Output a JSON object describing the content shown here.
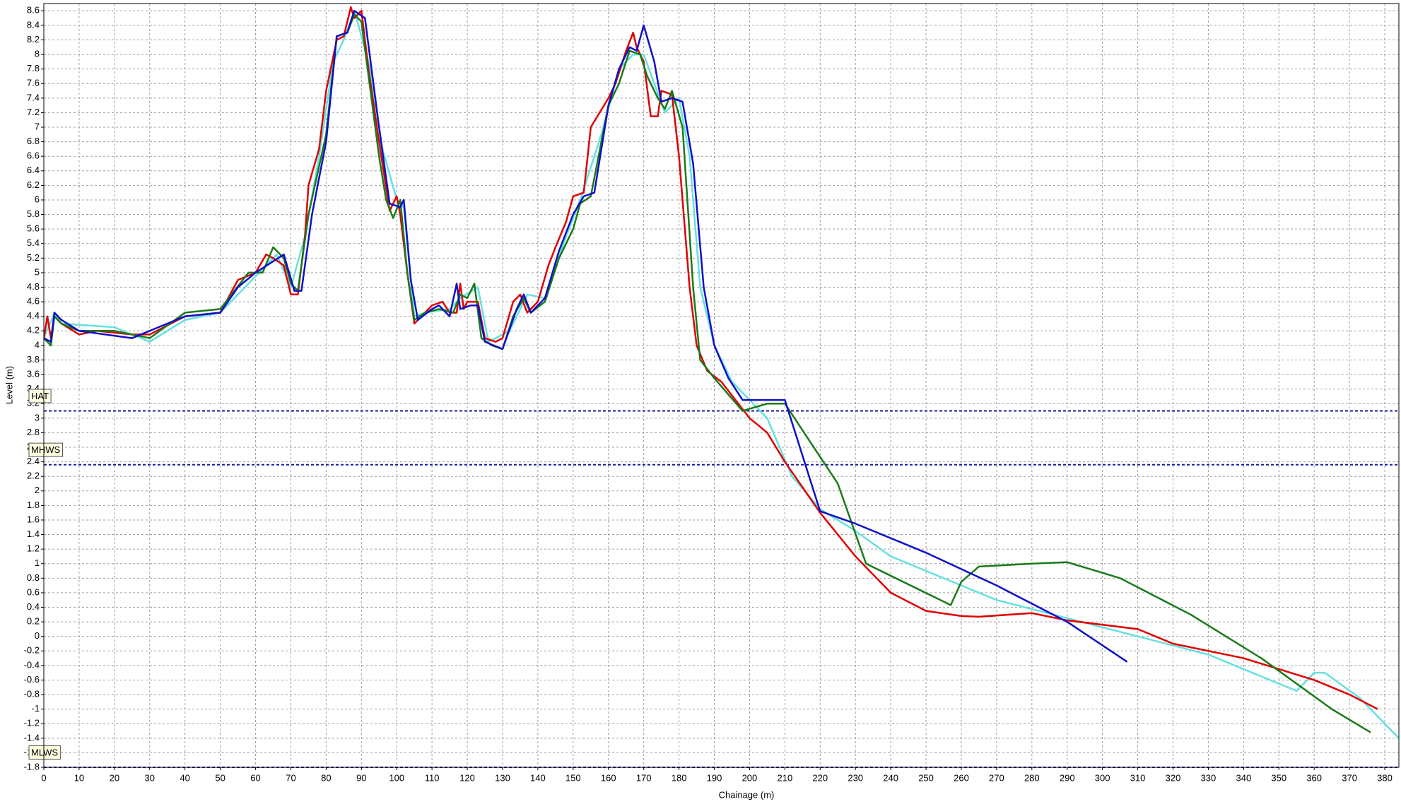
{
  "chart_data": {
    "type": "line",
    "x_label": "Chainage (m)",
    "y_label": "Level (m)",
    "xlim": [
      0,
      384
    ],
    "ylim": [
      -1.8,
      8.7
    ],
    "xticks": [
      0,
      10,
      20,
      30,
      40,
      50,
      60,
      70,
      80,
      90,
      100,
      110,
      120,
      130,
      140,
      150,
      160,
      170,
      180,
      190,
      200,
      210,
      220,
      230,
      240,
      250,
      260,
      270,
      280,
      290,
      300,
      310,
      320,
      330,
      340,
      350,
      360,
      370,
      380
    ],
    "yticks": [
      -1.8,
      -1.6,
      -1.4,
      -1.2,
      -1,
      -0.8,
      -0.6,
      -0.4,
      -0.2,
      0,
      0.2,
      0.4,
      0.6,
      0.8,
      1,
      1.2,
      1.4,
      1.6,
      1.8,
      2,
      2.2,
      2.4,
      2.6,
      2.8,
      3,
      3.2,
      3.4,
      3.6,
      3.8,
      4,
      4.2,
      4.4,
      4.6,
      4.8,
      5,
      5.2,
      5.4,
      5.6,
      5.8,
      6,
      6.2,
      6.4,
      6.6,
      6.8,
      7,
      7.2,
      7.4,
      7.6,
      7.8,
      8,
      8.2,
      8.4,
      8.6
    ],
    "grid": true,
    "reference_lines": [
      {
        "label": "HAT",
        "value": 3.1,
        "color": "#1a1aa0"
      },
      {
        "label": "MHWS",
        "value": 2.36,
        "color": "#1a1aa0"
      },
      {
        "label": "MLWS",
        "value": -1.8,
        "color": "#1a1aa0"
      }
    ],
    "series": [
      {
        "color": "#66e0e0",
        "x": [
          0,
          3,
          5,
          20,
          30,
          40,
          50,
          60,
          66,
          70,
          74,
          78,
          82,
          85,
          88,
          92,
          96,
          100,
          102,
          105,
          108,
          115,
          118,
          123,
          126,
          132,
          137,
          142,
          148,
          152,
          158,
          163,
          167,
          170,
          173,
          176,
          180,
          183,
          186,
          190,
          195,
          205,
          212,
          220,
          230,
          240,
          250,
          270,
          290,
          310,
          330,
          355,
          360,
          363,
          373,
          384
        ],
        "values": [
          4.1,
          4.45,
          4.3,
          4.25,
          4.05,
          4.35,
          4.45,
          4.95,
          5.25,
          4.8,
          5.5,
          6.6,
          7.9,
          8.2,
          8.6,
          7.9,
          6.7,
          6.0,
          5.9,
          4.4,
          4.45,
          4.5,
          4.65,
          4.8,
          4.05,
          4.2,
          4.7,
          4.65,
          5.5,
          6.0,
          6.9,
          7.8,
          8.0,
          8.0,
          7.6,
          7.2,
          7.4,
          6.6,
          4.8,
          4.0,
          3.5,
          3.0,
          2.2,
          1.75,
          1.45,
          1.1,
          0.9,
          0.5,
          0.25,
          0.0,
          -0.25,
          -0.75,
          -0.5,
          -0.5,
          -0.85,
          -1.4
        ]
      },
      {
        "color": "#e00000",
        "x": [
          0,
          1,
          2,
          3,
          5,
          10,
          15,
          25,
          30,
          40,
          50,
          55,
          60,
          63,
          65,
          68,
          70,
          72,
          74,
          75,
          78,
          80,
          83,
          85,
          87,
          88,
          90,
          92,
          95,
          98,
          100,
          101,
          103,
          105,
          107,
          110,
          113,
          115,
          117,
          118,
          119,
          120,
          123,
          125,
          128,
          130,
          133,
          135,
          137,
          140,
          143,
          145,
          148,
          150,
          153,
          155,
          160,
          162,
          165,
          167,
          168,
          170,
          172,
          174,
          175,
          178,
          180,
          183,
          185,
          188,
          192,
          200,
          205,
          210,
          220,
          230,
          240,
          250,
          260,
          265,
          280,
          290,
          310,
          320,
          340,
          360,
          370,
          378
        ],
        "values": [
          4.1,
          4.4,
          4.1,
          4.4,
          4.3,
          4.15,
          4.2,
          4.15,
          4.15,
          4.4,
          4.45,
          4.9,
          5.0,
          5.25,
          5.2,
          5.1,
          4.7,
          4.7,
          5.5,
          6.2,
          6.7,
          7.5,
          8.2,
          8.25,
          8.65,
          8.5,
          8.6,
          7.8,
          6.8,
          5.85,
          6.05,
          5.8,
          5.0,
          4.3,
          4.4,
          4.55,
          4.6,
          4.45,
          4.45,
          4.85,
          4.5,
          4.6,
          4.6,
          4.1,
          4.05,
          4.1,
          4.6,
          4.7,
          4.45,
          4.6,
          5.1,
          5.35,
          5.7,
          6.05,
          6.1,
          7.0,
          7.4,
          7.6,
          8.05,
          8.3,
          8.1,
          7.9,
          7.15,
          7.15,
          7.5,
          7.45,
          6.6,
          4.8,
          4.0,
          3.65,
          3.5,
          3.0,
          2.8,
          2.4,
          1.7,
          1.1,
          0.6,
          0.35,
          0.28,
          0.27,
          0.32,
          0.22,
          0.1,
          -0.1,
          -0.3,
          -0.6,
          -0.8,
          -1.0
        ]
      },
      {
        "color": "#1a7a1a",
        "x": [
          0,
          2,
          3,
          5,
          10,
          20,
          30,
          40,
          50,
          58,
          62,
          65,
          68,
          70,
          72,
          75,
          80,
          83,
          86,
          88,
          90,
          95,
          97,
          99,
          101,
          103,
          105,
          108,
          112,
          116,
          118,
          120,
          122,
          124,
          127,
          130,
          133,
          136,
          138,
          142,
          146,
          150,
          152,
          155,
          160,
          163,
          166,
          169,
          171,
          174,
          176,
          178,
          181,
          184,
          186,
          190,
          198,
          205,
          210,
          225,
          233,
          257,
          260,
          265,
          280,
          290,
          305,
          325,
          345,
          365,
          376
        ],
        "values": [
          4.1,
          4.0,
          4.4,
          4.3,
          4.2,
          4.2,
          4.1,
          4.45,
          4.5,
          5.0,
          5.0,
          5.35,
          5.2,
          4.85,
          4.75,
          5.8,
          6.9,
          8.25,
          8.3,
          8.55,
          8.45,
          6.6,
          6.0,
          5.75,
          6.0,
          5.0,
          4.35,
          4.45,
          4.5,
          4.45,
          4.7,
          4.65,
          4.85,
          4.1,
          4.0,
          3.95,
          4.4,
          4.65,
          4.45,
          4.6,
          5.2,
          5.6,
          5.95,
          6.05,
          7.3,
          7.6,
          8.05,
          8.0,
          7.7,
          7.4,
          7.25,
          7.5,
          7.0,
          4.8,
          3.8,
          3.55,
          3.1,
          3.2,
          3.2,
          2.1,
          1.0,
          0.43,
          0.75,
          0.96,
          1.0,
          1.02,
          0.8,
          0.3,
          -0.3,
          -1.0,
          -1.32
        ]
      },
      {
        "color": "#1010c8",
        "x": [
          0,
          2,
          3,
          5,
          10,
          25,
          40,
          50,
          55,
          60,
          68,
          71,
          73,
          76,
          80,
          83,
          86,
          88,
          91,
          95,
          98,
          101,
          102,
          104,
          106,
          110,
          112,
          115,
          117,
          118,
          121,
          123,
          125,
          130,
          134,
          136,
          138,
          142,
          146,
          150,
          153,
          156,
          160,
          163,
          166,
          168,
          170,
          173,
          175,
          178,
          181,
          184,
          187,
          190,
          194,
          198,
          210,
          220,
          230,
          250,
          270,
          290,
          307
        ],
        "values": [
          4.1,
          4.05,
          4.45,
          4.35,
          4.2,
          4.1,
          4.4,
          4.45,
          4.8,
          5.0,
          5.25,
          4.75,
          4.75,
          5.8,
          6.8,
          8.25,
          8.3,
          8.6,
          8.5,
          7.0,
          5.95,
          5.9,
          6.0,
          4.9,
          4.35,
          4.5,
          4.55,
          4.4,
          4.85,
          4.5,
          4.55,
          4.55,
          4.05,
          3.95,
          4.5,
          4.7,
          4.45,
          4.65,
          5.3,
          5.8,
          6.05,
          6.1,
          7.3,
          7.8,
          8.1,
          8.05,
          8.4,
          7.9,
          7.35,
          7.4,
          7.35,
          6.5,
          4.8,
          4.0,
          3.55,
          3.25,
          3.25,
          1.72,
          1.55,
          1.15,
          0.7,
          0.2,
          -0.35
        ]
      }
    ]
  }
}
